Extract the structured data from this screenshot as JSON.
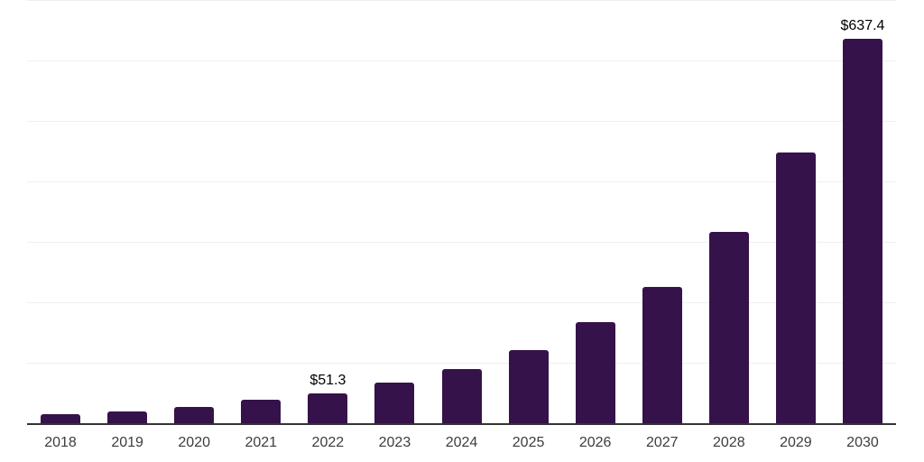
{
  "chart_data": {
    "type": "bar",
    "title": "",
    "xlabel": "",
    "ylabel": "",
    "categories": [
      "2018",
      "2019",
      "2020",
      "2021",
      "2022",
      "2023",
      "2024",
      "2025",
      "2026",
      "2027",
      "2028",
      "2029",
      "2030"
    ],
    "values": [
      17,
      21,
      29,
      40,
      51.3,
      68,
      91,
      122,
      168,
      227,
      318,
      450,
      637.4
    ],
    "data_labels": [
      "",
      "",
      "",
      "",
      "$51.3",
      "",
      "",
      "",
      "",
      "",
      "",
      "",
      "$637.4"
    ],
    "ylim": [
      0,
      700
    ],
    "gridline_step": 100,
    "grid": "horizontal",
    "legend": "none",
    "colors": {
      "bar": "#36124B",
      "axis_line": "#333333",
      "gridline": "#efefef",
      "tick_label": "#3d3d3d",
      "data_label": "#000000",
      "background": "#ffffff"
    }
  }
}
